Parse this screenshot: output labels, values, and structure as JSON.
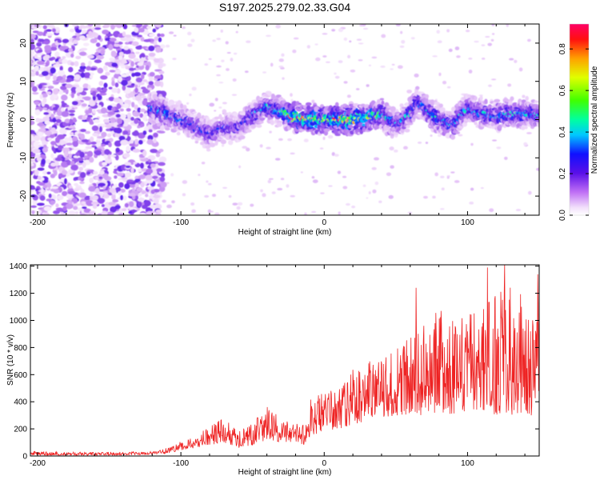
{
  "title": "S197.2025.279.02.33.G04",
  "colors": {
    "snr_line": "#ee2222",
    "axis": "#000000",
    "background": "#ffffff",
    "colormap": [
      "#ffffff",
      "#e8c8f8",
      "#b070f0",
      "#7030e8",
      "#3010f0",
      "#0050ff",
      "#00d0ff",
      "#00ffa0",
      "#40ff00",
      "#e0ff00",
      "#ffa000",
      "#ff1010",
      "#ff0066"
    ]
  },
  "chart_data": [
    {
      "type": "heatmap",
      "xlabel": "Height of straight line (km)",
      "ylabel": "Frequency (Hz)",
      "xlim": [
        -205,
        150
      ],
      "ylim": [
        -25,
        25
      ],
      "xticks": [
        -200,
        -100,
        0,
        100
      ],
      "xtick_labels": [
        "-200",
        "-100",
        "0",
        "100"
      ],
      "yticks": [
        -20,
        -10,
        0,
        10,
        20
      ],
      "ytick_labels": [
        "-20",
        "-10",
        "0",
        "10",
        "20"
      ],
      "noise_region_x": [
        -205,
        -112
      ],
      "signal_ridge": {
        "x": [
          -122,
          -110,
          -100,
          -90,
          -80,
          -70,
          -60,
          -50,
          -40,
          -30,
          -20,
          -10,
          0,
          10,
          20,
          30,
          40,
          50,
          60,
          65,
          70,
          80,
          90,
          100,
          110,
          120,
          130,
          140,
          150
        ],
        "frequency": [
          3,
          1.5,
          0,
          -1.5,
          -4,
          -2,
          -2,
          1,
          3.5,
          2,
          0.5,
          0,
          0,
          0,
          0,
          0.5,
          1.5,
          -1.5,
          1.5,
          5,
          3,
          0,
          -1.5,
          3,
          1.5,
          1,
          1.5,
          1.5,
          1
        ],
        "amplitude": [
          0.35,
          0.4,
          0.35,
          0.35,
          0.3,
          0.3,
          0.3,
          0.35,
          0.4,
          0.45,
          0.75,
          0.7,
          0.6,
          0.7,
          0.75,
          0.6,
          0.5,
          0.4,
          0.45,
          0.4,
          0.4,
          0.45,
          0.4,
          0.4,
          0.4,
          0.4,
          0.4,
          0.4,
          0.4
        ]
      },
      "colorbar": {
        "label": "Normalized spectral amplitude",
        "lim": [
          0,
          0.92
        ],
        "ticks": [
          0.0,
          0.2,
          0.4,
          0.6,
          0.8
        ],
        "tick_labels": [
          "0.0",
          "0.2",
          "0.4",
          "0.6",
          "0.8"
        ]
      }
    },
    {
      "type": "line",
      "xlabel": "Height of straight line (km)",
      "ylabel": "SNR (10 * v/v)",
      "xlim": [
        -205,
        150
      ],
      "ylim": [
        0,
        1410
      ],
      "xticks": [
        -200,
        -100,
        0,
        100
      ],
      "xtick_labels": [
        "-200",
        "-100",
        "0",
        "100"
      ],
      "yticks": [
        0,
        200,
        400,
        600,
        800,
        1000,
        1200,
        1400
      ],
      "ytick_labels": [
        "0",
        "200",
        "400",
        "600",
        "800",
        "1000",
        "1200",
        "1400"
      ],
      "series": [
        {
          "name": "SNR",
          "x": [
            -205,
            -180,
            -160,
            -140,
            -120,
            -110,
            -100,
            -90,
            -80,
            -70,
            -60,
            -50,
            -45,
            -40,
            -30,
            -20,
            -12,
            -10,
            0,
            10,
            20,
            30,
            40,
            50,
            60,
            70,
            80,
            90,
            100,
            110,
            120,
            130,
            140,
            150
          ],
          "envelope": [
            35,
            30,
            30,
            30,
            35,
            60,
            110,
            150,
            220,
            290,
            180,
            240,
            320,
            380,
            300,
            260,
            230,
            420,
            470,
            560,
            650,
            700,
            750,
            800,
            900,
            980,
            1100,
            1000,
            1050,
            1100,
            1200,
            1250,
            1250,
            1300
          ],
          "baseline": [
            5,
            5,
            5,
            5,
            10,
            20,
            40,
            60,
            80,
            100,
            60,
            80,
            100,
            120,
            100,
            90,
            80,
            150,
            180,
            200,
            230,
            260,
            280,
            300,
            300,
            300,
            320,
            300,
            300,
            300,
            300,
            300,
            300,
            300
          ],
          "peaks": [
            {
              "x": 126,
              "y": 1410
            },
            {
              "x": 114,
              "y": 1390
            },
            {
              "x": 64,
              "y": 1240
            },
            {
              "x": 149,
              "y": 1340
            }
          ]
        }
      ]
    }
  ]
}
